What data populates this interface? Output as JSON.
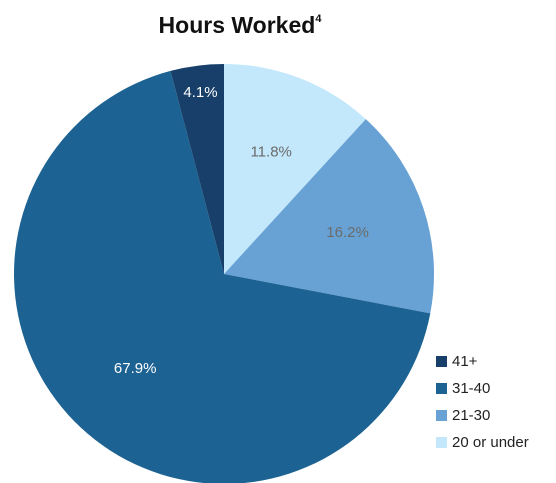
{
  "chart_data": {
    "type": "pie",
    "title": "Hours Worked",
    "title_superscript": "4",
    "categories": [
      "41+",
      "31-40",
      "21-30",
      "20 or under"
    ],
    "values": [
      4.1,
      67.9,
      16.2,
      11.8
    ],
    "value_labels": [
      "4.1%",
      "67.9%",
      "16.2%",
      "11.8%"
    ],
    "colors": [
      "#173f69",
      "#1c6292",
      "#68a2d4",
      "#c4e8fb"
    ],
    "legend": "bottom-right"
  }
}
